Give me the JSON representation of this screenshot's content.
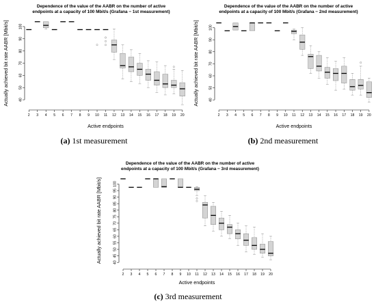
{
  "chart_data": [
    {
      "type": "box",
      "panel_label": "(a)",
      "caption": "1st measurement",
      "title_lines": [
        "Dependence of the value of the AABR on the number of active",
        "endpoints at a capacity of 100 Mbit/s (Grafana − 1st measurement)"
      ],
      "xlabel": "Active endpoints",
      "ylabel": "Actually achieved bit rate AABR [Mbit/s]",
      "ylim": [
        35,
        105
      ],
      "yticks": [
        40,
        50,
        60,
        70,
        80,
        90,
        100
      ],
      "categories": [
        "2",
        "3",
        "4",
        "5",
        "6",
        "7",
        "8",
        "9",
        "10",
        "11",
        "12",
        "13",
        "14",
        "15",
        "16",
        "17",
        "18",
        "19",
        "20"
      ],
      "boxes": [
        {
          "min": 97.5,
          "q1": 97.5,
          "median": 97.5,
          "q3": 97.5,
          "max": 97.5,
          "outliers": []
        },
        {
          "min": 104,
          "q1": 104,
          "median": 104,
          "q3": 104,
          "max": 104,
          "outliers": []
        },
        {
          "min": 98,
          "q1": 99,
          "median": 101,
          "q3": 104,
          "max": 104,
          "outliers": []
        },
        {
          "min": 97.5,
          "q1": 97.5,
          "median": 97.5,
          "q3": 97.5,
          "max": 97.5,
          "outliers": []
        },
        {
          "min": 104,
          "q1": 104,
          "median": 104,
          "q3": 104,
          "max": 104,
          "outliers": []
        },
        {
          "min": 104,
          "q1": 104,
          "median": 104,
          "q3": 104,
          "max": 104,
          "outliers": []
        },
        {
          "min": 97.5,
          "q1": 97.5,
          "median": 97.5,
          "q3": 97.5,
          "max": 97.5,
          "outliers": []
        },
        {
          "min": 97.5,
          "q1": 97.5,
          "median": 97.5,
          "q3": 97.5,
          "max": 97.5,
          "outliers": []
        },
        {
          "min": 97.5,
          "q1": 97.5,
          "median": 97.5,
          "q3": 97.5,
          "max": 97.5,
          "outliers": [
            85
          ]
        },
        {
          "min": 97.5,
          "q1": 97.5,
          "median": 97.5,
          "q3": 97.5,
          "max": 97.5,
          "outliers": [
            85,
            88,
            91
          ]
        },
        {
          "min": 73,
          "q1": 79,
          "median": 85,
          "q3": 89,
          "max": 98,
          "outliers": []
        },
        {
          "min": 57,
          "q1": 66,
          "median": 68,
          "q3": 78,
          "max": 85,
          "outliers": []
        },
        {
          "min": 55,
          "q1": 63,
          "median": 67,
          "q3": 75,
          "max": 81,
          "outliers": []
        },
        {
          "min": 53,
          "q1": 60,
          "median": 65,
          "q3": 70,
          "max": 78,
          "outliers": []
        },
        {
          "min": 50,
          "q1": 56,
          "median": 61,
          "q3": 65,
          "max": 72,
          "outliers": []
        },
        {
          "min": 46,
          "q1": 52,
          "median": 56,
          "q3": 63,
          "max": 71,
          "outliers": []
        },
        {
          "min": 44,
          "q1": 50,
          "median": 53,
          "q3": 61,
          "max": 68,
          "outliers": []
        },
        {
          "min": 45,
          "q1": 50,
          "median": 52,
          "q3": 56,
          "max": 65,
          "outliers": [
            67
          ]
        },
        {
          "min": 36,
          "q1": 43,
          "median": 49,
          "q3": 54,
          "max": 64,
          "outliers": []
        }
      ]
    },
    {
      "type": "box",
      "panel_label": "(b)",
      "caption": "2nd measurement",
      "title_lines": [
        "Dependence of the value of the AABR on the number of active",
        "endpoints at a capacity of 100 Mbit/s (Grafana − 2nd measurement)"
      ],
      "xlabel": "Active endpoints",
      "ylabel": "Actually achieved bit rate AABR [Mbit/s]",
      "ylim": [
        35,
        106
      ],
      "yticks": [
        40,
        50,
        60,
        70,
        80,
        90,
        100
      ],
      "categories": [
        "2",
        "3",
        "4",
        "5",
        "6",
        "7",
        "8",
        "9",
        "10",
        "11",
        "12",
        "13",
        "14",
        "15",
        "16",
        "17",
        "18",
        "19",
        "20"
      ],
      "boxes": [
        {
          "min": 104,
          "q1": 104,
          "median": 104,
          "q3": 104,
          "max": 104,
          "outliers": []
        },
        {
          "min": 97.5,
          "q1": 97.5,
          "median": 97.5,
          "q3": 97.5,
          "max": 97.5,
          "outliers": []
        },
        {
          "min": 98,
          "q1": 98,
          "median": 101,
          "q3": 104,
          "max": 104,
          "outliers": []
        },
        {
          "min": 97.5,
          "q1": 97.5,
          "median": 97.5,
          "q3": 97.5,
          "max": 97.5,
          "outliers": []
        },
        {
          "min": 97.5,
          "q1": 97.5,
          "median": 104,
          "q3": 104,
          "max": 104,
          "outliers": []
        },
        {
          "min": 104,
          "q1": 104,
          "median": 104,
          "q3": 104,
          "max": 104,
          "outliers": []
        },
        {
          "min": 104,
          "q1": 104,
          "median": 104,
          "q3": 104,
          "max": 104,
          "outliers": []
        },
        {
          "min": 97.5,
          "q1": 97.5,
          "median": 97.5,
          "q3": 97.5,
          "max": 97.5,
          "outliers": []
        },
        {
          "min": 104,
          "q1": 104,
          "median": 104,
          "q3": 104,
          "max": 104,
          "outliers": []
        },
        {
          "min": 90,
          "q1": 95,
          "median": 97,
          "q3": 98,
          "max": 99,
          "outliers": []
        },
        {
          "min": 77,
          "q1": 82,
          "median": 88,
          "q3": 94,
          "max": 100,
          "outliers": []
        },
        {
          "min": 62,
          "q1": 66,
          "median": 76,
          "q3": 78,
          "max": 85,
          "outliers": []
        },
        {
          "min": 58,
          "q1": 64,
          "median": 68,
          "q3": 77,
          "max": 80,
          "outliers": []
        },
        {
          "min": 53,
          "q1": 58,
          "median": 63,
          "q3": 67,
          "max": 75,
          "outliers": []
        },
        {
          "min": 48,
          "q1": 56,
          "median": 62,
          "q3": 66,
          "max": 72,
          "outliers": []
        },
        {
          "min": 49,
          "q1": 54,
          "median": 62,
          "q3": 68,
          "max": 75,
          "outliers": []
        },
        {
          "min": 44,
          "q1": 48,
          "median": 51,
          "q3": 57,
          "max": 62,
          "outliers": []
        },
        {
          "min": 44,
          "q1": 49,
          "median": 52,
          "q3": 57,
          "max": 68,
          "outliers": [
            71
          ]
        },
        {
          "min": 38,
          "q1": 42,
          "median": 46,
          "q3": 55,
          "max": 58,
          "outliers": []
        }
      ]
    },
    {
      "type": "box",
      "panel_label": "(c)",
      "caption": "3rd measurement",
      "title_lines": [
        "Dependence of the value of the AABR on the number of active",
        "endpoints at a capacity of 100 Mbit/s (Grafana − 3rd measurement)"
      ],
      "xlabel": "Active endpoints",
      "ylabel": "Actually achieved bit rate AABR [Mbit/s]",
      "ylim": [
        38,
        106
      ],
      "yticks": [
        40,
        45,
        50,
        55,
        60,
        65,
        70,
        75,
        80,
        85,
        90,
        95,
        100
      ],
      "categories": [
        "2",
        "3",
        "4",
        "5",
        "6",
        "7",
        "8",
        "9",
        "10",
        "11",
        "12",
        "13",
        "14",
        "15",
        "16",
        "17",
        "18",
        "19",
        "20"
      ],
      "boxes": [
        {
          "min": 104,
          "q1": 104,
          "median": 104,
          "q3": 104,
          "max": 104,
          "outliers": []
        },
        {
          "min": 97.5,
          "q1": 97.5,
          "median": 97.5,
          "q3": 97.5,
          "max": 97.5,
          "outliers": []
        },
        {
          "min": 97.5,
          "q1": 97.5,
          "median": 97.5,
          "q3": 97.5,
          "max": 97.5,
          "outliers": []
        },
        {
          "min": 104,
          "q1": 104,
          "median": 104,
          "q3": 104,
          "max": 104,
          "outliers": []
        },
        {
          "min": 97.5,
          "q1": 97.5,
          "median": 104,
          "q3": 104,
          "max": 104,
          "outliers": []
        },
        {
          "min": 97.5,
          "q1": 97.5,
          "median": 98,
          "q3": 104,
          "max": 104,
          "outliers": []
        },
        {
          "min": 104,
          "q1": 104,
          "median": 104,
          "q3": 104,
          "max": 104,
          "outliers": []
        },
        {
          "min": 97.5,
          "q1": 97.5,
          "median": 97.5,
          "q3": 104,
          "max": 104,
          "outliers": []
        },
        {
          "min": 97.5,
          "q1": 97.5,
          "median": 97.5,
          "q3": 97.5,
          "max": 97.5,
          "outliers": []
        },
        {
          "min": 91,
          "q1": 95,
          "median": 96,
          "q3": 97.5,
          "max": 98,
          "outliers": [
            87,
            89
          ]
        },
        {
          "min": 68,
          "q1": 74,
          "median": 84,
          "q3": 86,
          "max": 91,
          "outliers": []
        },
        {
          "min": 64,
          "q1": 69,
          "median": 76,
          "q3": 83,
          "max": 86,
          "outliers": []
        },
        {
          "min": 60,
          "q1": 65,
          "median": 70,
          "q3": 74,
          "max": 79,
          "outliers": []
        },
        {
          "min": 58,
          "q1": 62,
          "median": 67,
          "q3": 69,
          "max": 76,
          "outliers": []
        },
        {
          "min": 53,
          "q1": 58,
          "median": 62,
          "q3": 65,
          "max": 70,
          "outliers": []
        },
        {
          "min": 48,
          "q1": 53,
          "median": 57,
          "q3": 62,
          "max": 68,
          "outliers": []
        },
        {
          "min": 46,
          "q1": 50,
          "median": 53,
          "q3": 59,
          "max": 67,
          "outliers": []
        },
        {
          "min": 44,
          "q1": 47,
          "median": 50,
          "q3": 54,
          "max": 62,
          "outliers": []
        },
        {
          "min": 42,
          "q1": 45,
          "median": 47,
          "q3": 56,
          "max": 60,
          "outliers": []
        }
      ]
    }
  ],
  "style": {
    "box_fill": "#d4d4d4",
    "box_stroke": "#8a8a8a",
    "median_color": "#000000",
    "whisker_color": "#8a8a8a",
    "axis_color": "#000000",
    "outlier_color": "#8a8a8a"
  }
}
